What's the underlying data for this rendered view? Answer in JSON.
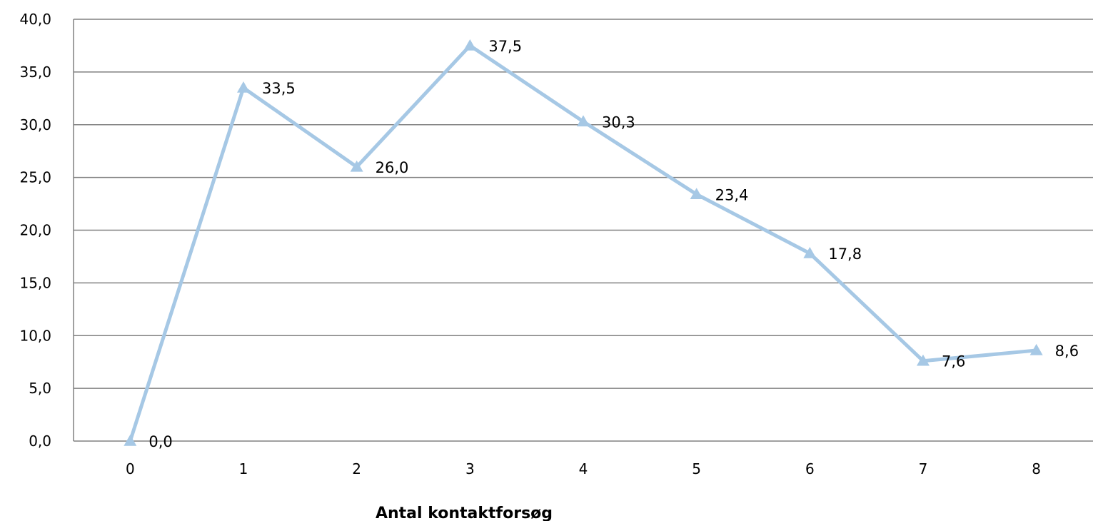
{
  "chart_data": {
    "type": "line",
    "x": [
      "0",
      "1",
      "2",
      "3",
      "4",
      "5",
      "6",
      "7",
      "8"
    ],
    "series": [
      {
        "values": [
          0.0,
          33.5,
          26.0,
          37.5,
          30.3,
          23.4,
          17.8,
          7.6,
          8.6
        ],
        "labels": [
          "0,0",
          "33,5",
          "26,0",
          "37,5",
          "30,3",
          "23,4",
          "17,8",
          "7,6",
          "8,6"
        ],
        "color": "#a6c8e5",
        "marker": "triangle"
      }
    ],
    "xlabel": "Antal kontaktforsøg",
    "ylabel": "",
    "ylim": [
      0,
      40
    ],
    "yticks": [
      "0,0",
      "5,0",
      "10,0",
      "15,0",
      "20,0",
      "25,0",
      "30,0",
      "35,0",
      "40,0"
    ],
    "grid": true,
    "legend": "none",
    "gridline_color": "#808080"
  }
}
